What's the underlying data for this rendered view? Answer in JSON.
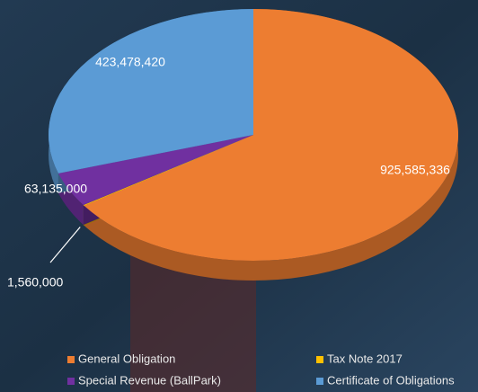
{
  "chart_data": {
    "type": "pie",
    "categories": [
      "General Obligation",
      "Tax Note 2017",
      "Special Revenue (BallPark)",
      "Certificate of Obligations"
    ],
    "values": [
      925585336,
      1560000,
      63135000,
      423478420
    ],
    "value_labels": [
      "925,585,336",
      "1,560,000",
      "63,135,000",
      "423,478,420"
    ],
    "colors": [
      "#ed7d31",
      "#ffc000",
      "#7030a0",
      "#5b9bd5"
    ]
  }
}
